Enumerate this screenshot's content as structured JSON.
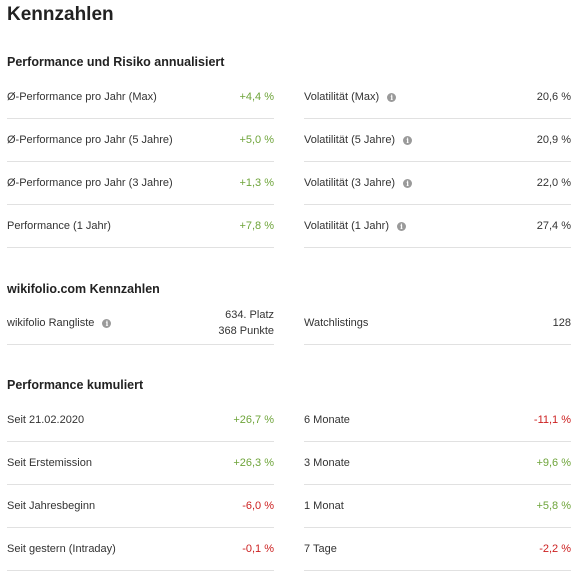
{
  "page_title": "Kennzahlen",
  "risk": {
    "title": "Performance und Risiko annualisiert",
    "left": [
      {
        "label": "Ø-Performance pro Jahr (Max)",
        "value": "+4,4 %",
        "tone": "pos"
      },
      {
        "label": "Ø-Performance pro Jahr (5 Jahre)",
        "value": "+5,0 %",
        "tone": "pos"
      },
      {
        "label": "Ø-Performance pro Jahr (3 Jahre)",
        "value": "+1,3 %",
        "tone": "pos"
      },
      {
        "label": "Performance (1 Jahr)",
        "value": "+7,8 %",
        "tone": "pos"
      }
    ],
    "right": [
      {
        "label": "Volatilität (Max)",
        "value": "20,6 %",
        "tone": "neutral"
      },
      {
        "label": "Volatilität (5 Jahre)",
        "value": "20,9 %",
        "tone": "neutral"
      },
      {
        "label": "Volatilität (3 Jahre)",
        "value": "22,0 %",
        "tone": "neutral"
      },
      {
        "label": "Volatilität (1 Jahr)",
        "value": "27,4 %",
        "tone": "neutral"
      }
    ]
  },
  "wiki": {
    "title": "wikifolio.com Kennzahlen",
    "ranking_label": "wikifolio Rangliste",
    "ranking_place": "634. Platz",
    "ranking_points": "368 Punkte",
    "watchlists_label": "Watchlistings",
    "watchlists_value": "128"
  },
  "cumulative": {
    "title": "Performance kumuliert",
    "left": [
      {
        "label": "Seit 21.02.2020",
        "value": "+26,7 %",
        "tone": "pos"
      },
      {
        "label": "Seit Erstemission",
        "value": "+26,3 %",
        "tone": "pos"
      },
      {
        "label": "Seit Jahresbeginn",
        "value": "-6,0 %",
        "tone": "neg"
      },
      {
        "label": "Seit gestern (Intraday)",
        "value": "-0,1 %",
        "tone": "neg"
      }
    ],
    "right": [
      {
        "label": "6 Monate",
        "value": "-11,1 %",
        "tone": "neg"
      },
      {
        "label": "3 Monate",
        "value": "+9,6 %",
        "tone": "pos"
      },
      {
        "label": "1 Monat",
        "value": "+5,8 %",
        "tone": "pos"
      },
      {
        "label": "7 Tage",
        "value": "-2,2 %",
        "tone": "neg"
      }
    ]
  },
  "colors": {
    "positive": "#6ea43a",
    "negative": "#cc1f1f",
    "divider": "#e1e1e1"
  },
  "icons": {
    "info": "info-icon"
  }
}
